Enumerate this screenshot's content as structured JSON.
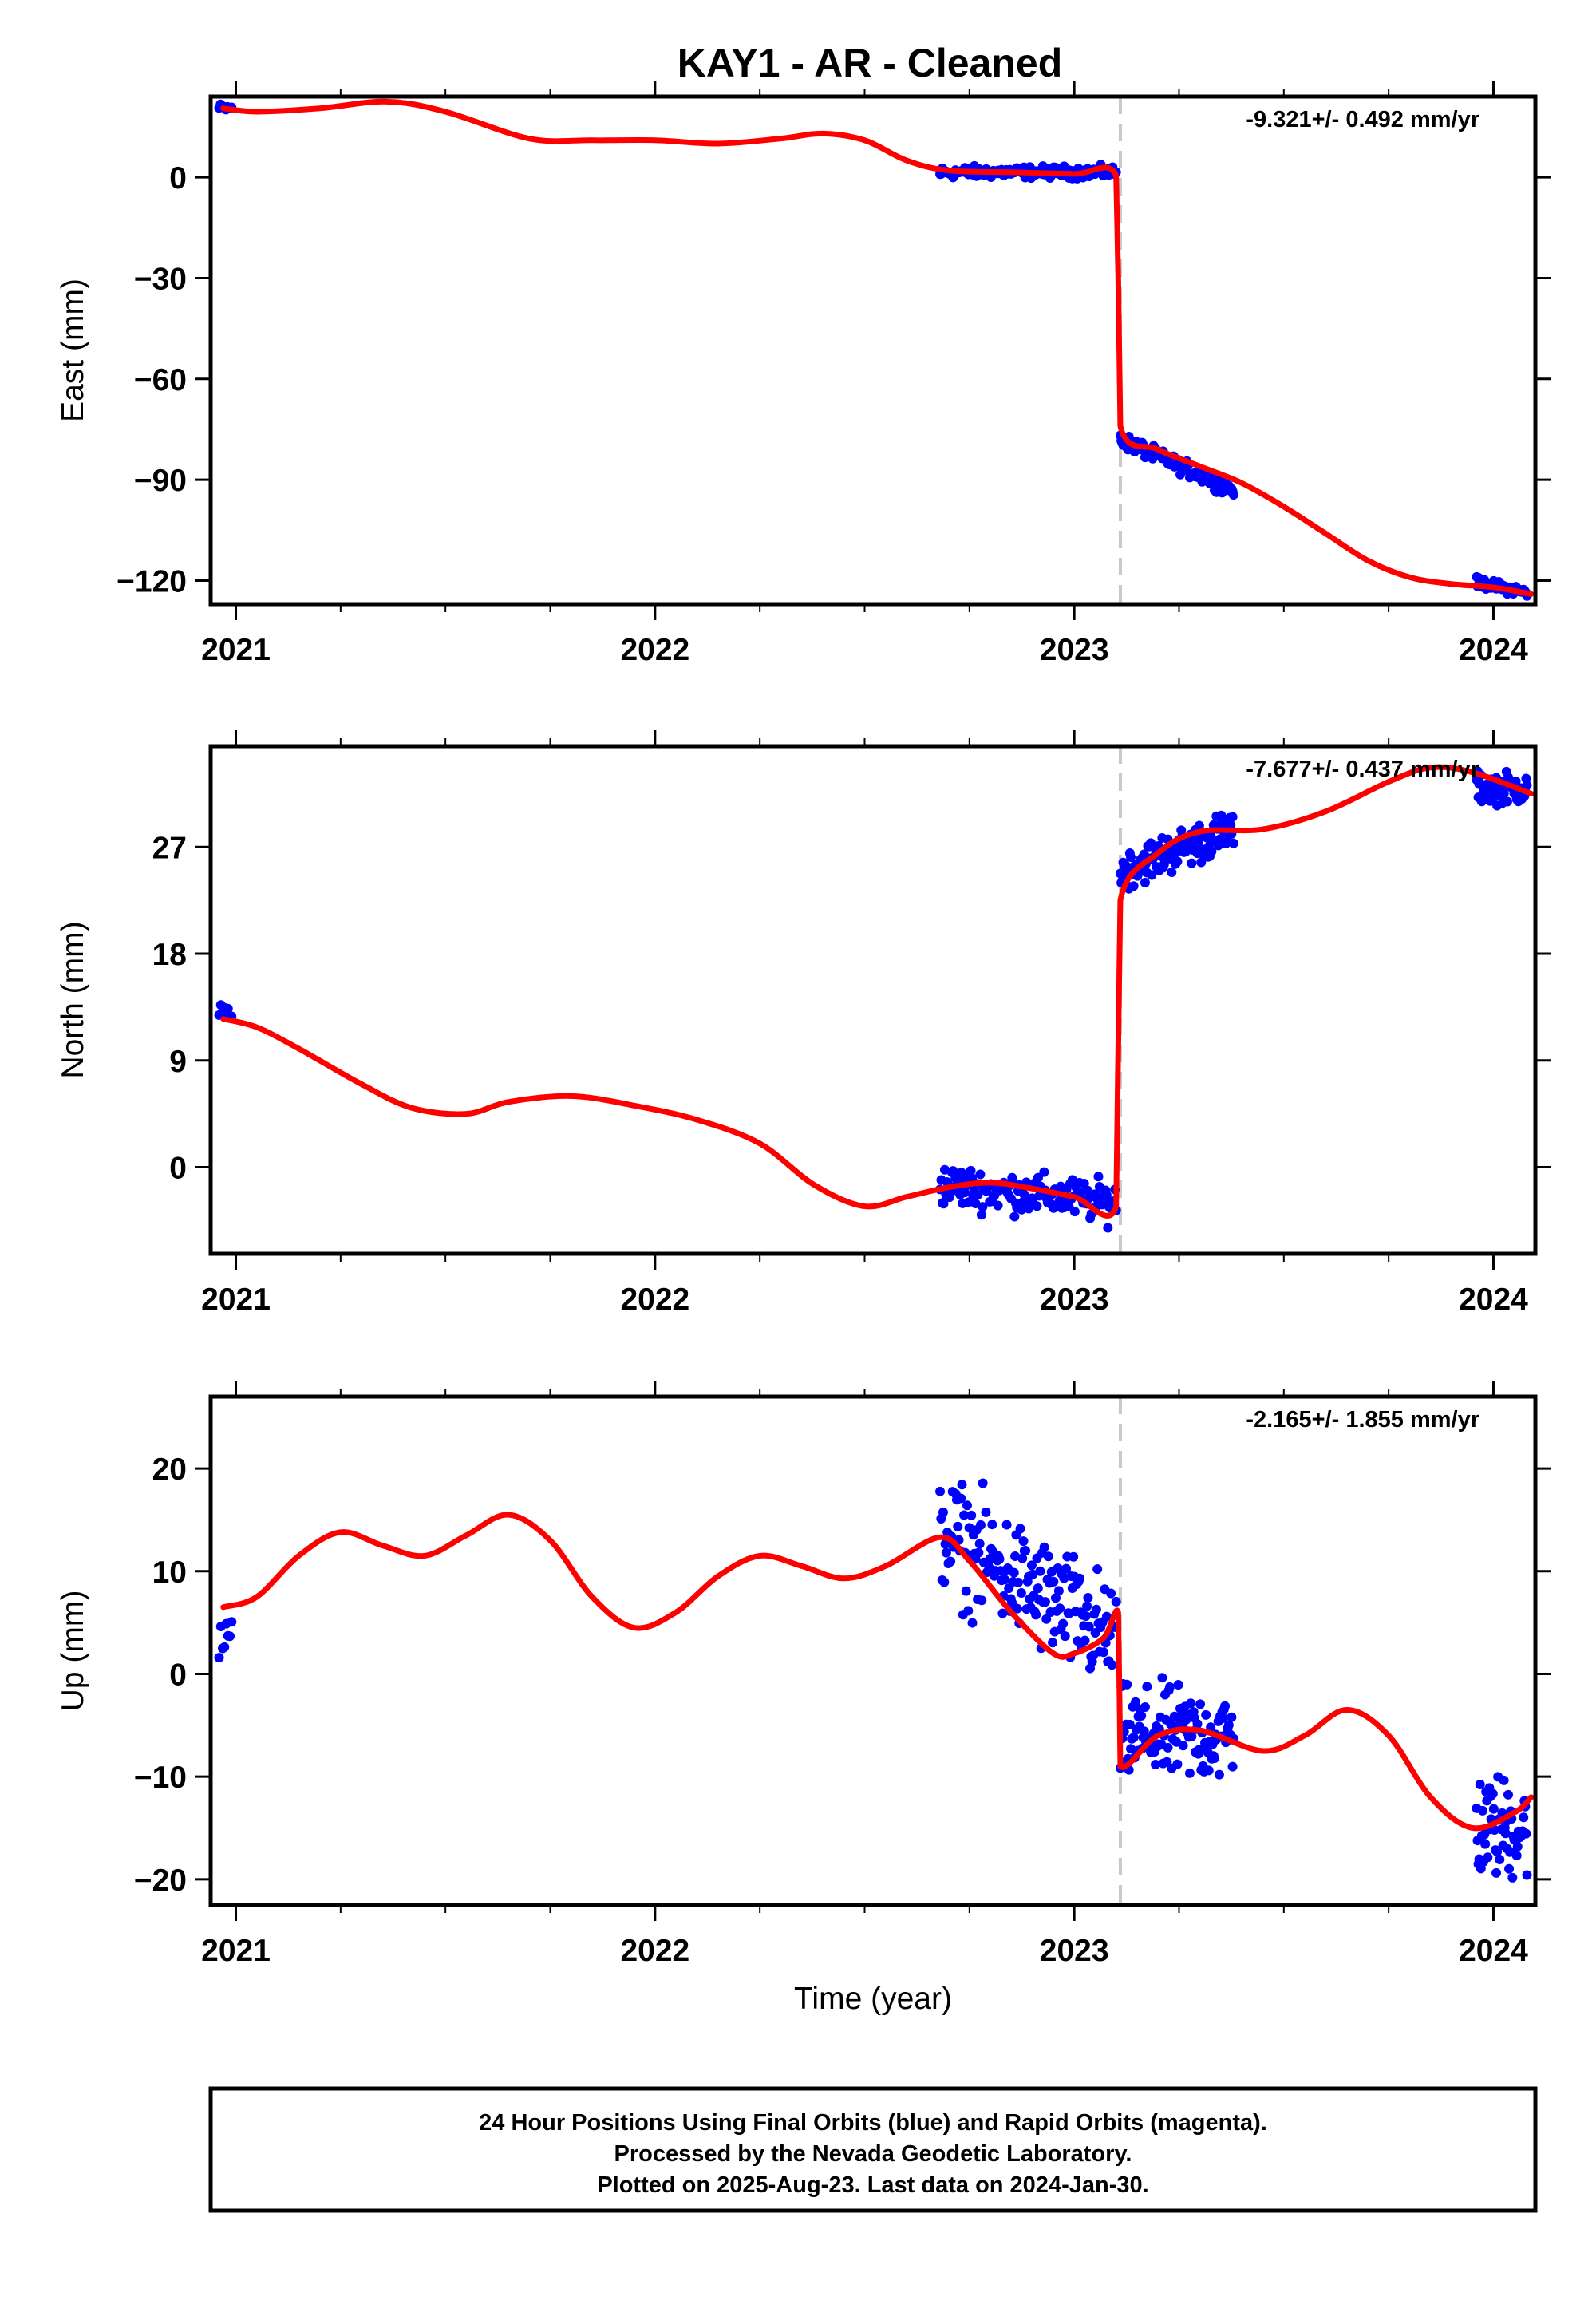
{
  "page": {
    "title": "KAY1  - AR - Cleaned",
    "footer_lines": [
      "24 Hour Positions Using Final Orbits (blue) and Rapid Orbits (magenta).",
      "Processed by the Nevada Geodetic Laboratory.",
      "Plotted on 2025-Aug-23. Last data on 2024-Jan-30."
    ]
  },
  "colors": {
    "data_points": "#0000ff",
    "model_line": "#ff0000",
    "event_line": "#c8c8c8",
    "frame": "#000000"
  },
  "chart_data": [
    {
      "type": "scatter",
      "component": "East",
      "ylabel": "East (mm)",
      "xlabel": "",
      "rate_label": "-9.321+/- 0.492 mm/yr",
      "xlim": [
        2020.94,
        2024.1
      ],
      "ylim": [
        -127,
        24
      ],
      "x_ticks": [
        2021,
        2022,
        2023,
        2024
      ],
      "y_ticks": [
        -120,
        -90,
        -60,
        -30,
        0
      ],
      "event_line_x": 2023.11,
      "model": [
        [
          2020.97,
          20.5
        ],
        [
          2021.05,
          19.5
        ],
        [
          2021.2,
          20.5
        ],
        [
          2021.36,
          22.5
        ],
        [
          2021.5,
          19.5
        ],
        [
          2021.7,
          11.5
        ],
        [
          2021.85,
          11
        ],
        [
          2022.0,
          11
        ],
        [
          2022.15,
          10
        ],
        [
          2022.3,
          11.5
        ],
        [
          2022.4,
          13
        ],
        [
          2022.5,
          11
        ],
        [
          2022.6,
          5
        ],
        [
          2022.7,
          2
        ],
        [
          2022.85,
          1.5
        ],
        [
          2023.0,
          1
        ],
        [
          2023.1,
          0.5
        ],
        [
          2023.105,
          -30
        ],
        [
          2023.11,
          -74
        ],
        [
          2023.2,
          -81
        ],
        [
          2023.3,
          -86
        ],
        [
          2023.4,
          -91
        ],
        [
          2023.5,
          -98
        ],
        [
          2023.6,
          -106
        ],
        [
          2023.7,
          -114
        ],
        [
          2023.8,
          -119
        ],
        [
          2023.9,
          -121
        ],
        [
          2024.0,
          -122
        ],
        [
          2024.09,
          -124
        ]
      ],
      "point_groups": [
        {
          "x_range": [
            2020.96,
            2020.99
          ],
          "count": 10,
          "center": [
            20.5,
            20.5
          ],
          "spread": 1.0
        },
        {
          "x_range": [
            2022.68,
            2023.1
          ],
          "count": 150,
          "center": [
            1.5,
            1.5
          ],
          "spread": 1.2
        },
        {
          "x_range": [
            2023.11,
            2023.38
          ],
          "count": 120,
          "center": [
            -78,
            -93
          ],
          "spread": 1.5
        },
        {
          "x_range": [
            2023.96,
            2024.08
          ],
          "count": 60,
          "center": [
            -120.5,
            -123.5
          ],
          "spread": 1.0
        }
      ]
    },
    {
      "type": "scatter",
      "component": "North",
      "ylabel": "North (mm)",
      "xlabel": "",
      "rate_label": "-7.677+/- 0.437 mm/yr",
      "xlim": [
        2020.94,
        2024.1
      ],
      "ylim": [
        -7.3,
        35.5
      ],
      "x_ticks": [
        2021,
        2022,
        2023,
        2024
      ],
      "y_ticks": [
        0,
        9,
        18,
        27
      ],
      "event_line_x": 2023.11,
      "model": [
        [
          2020.97,
          12.5
        ],
        [
          2021.05,
          11.8
        ],
        [
          2021.15,
          10
        ],
        [
          2021.3,
          7
        ],
        [
          2021.42,
          5
        ],
        [
          2021.55,
          4.5
        ],
        [
          2021.65,
          5.5
        ],
        [
          2021.8,
          6
        ],
        [
          2021.95,
          5.2
        ],
        [
          2022.1,
          4
        ],
        [
          2022.25,
          2
        ],
        [
          2022.38,
          -1.5
        ],
        [
          2022.5,
          -3.3
        ],
        [
          2022.6,
          -2.5
        ],
        [
          2022.7,
          -1.7
        ],
        [
          2022.8,
          -1.3
        ],
        [
          2022.9,
          -1.8
        ],
        [
          2023.0,
          -2.5
        ],
        [
          2023.1,
          -3.3
        ],
        [
          2023.105,
          10
        ],
        [
          2023.11,
          22.5
        ],
        [
          2023.2,
          26.5
        ],
        [
          2023.3,
          28.3
        ],
        [
          2023.45,
          28.5
        ],
        [
          2023.6,
          30
        ],
        [
          2023.75,
          32.5
        ],
        [
          2023.85,
          33.7
        ],
        [
          2023.95,
          33.3
        ],
        [
          2024.09,
          31.5
        ]
      ],
      "point_groups": [
        {
          "x_range": [
            2020.96,
            2020.99
          ],
          "count": 8,
          "center": [
            13,
            13
          ],
          "spread": 0.6
        },
        {
          "x_range": [
            2022.68,
            2023.1
          ],
          "count": 150,
          "center": [
            -1.5,
            -3.0
          ],
          "spread": 1.2
        },
        {
          "x_range": [
            2023.11,
            2023.38
          ],
          "count": 120,
          "center": [
            25,
            28.5
          ],
          "spread": 1.2
        },
        {
          "x_range": [
            2023.96,
            2024.08
          ],
          "count": 60,
          "center": [
            32,
            32
          ],
          "spread": 0.9
        }
      ]
    },
    {
      "type": "scatter",
      "component": "Up",
      "ylabel": "Up (mm)",
      "xlabel": "Time (year)",
      "rate_label": "-2.165+/- 1.855 mm/yr",
      "xlim": [
        2020.94,
        2024.1
      ],
      "ylim": [
        -22.5,
        27
      ],
      "x_ticks": [
        2021,
        2022,
        2023,
        2024
      ],
      "y_ticks": [
        -20,
        -10,
        0,
        10,
        20
      ],
      "event_line_x": 2023.11,
      "model": [
        [
          2020.97,
          6.5
        ],
        [
          2021.05,
          7.5
        ],
        [
          2021.15,
          11.5
        ],
        [
          2021.25,
          13.8
        ],
        [
          2021.35,
          12.5
        ],
        [
          2021.45,
          11.5
        ],
        [
          2021.55,
          13.5
        ],
        [
          2021.65,
          15.5
        ],
        [
          2021.75,
          13
        ],
        [
          2021.85,
          7.5
        ],
        [
          2021.95,
          4.5
        ],
        [
          2022.05,
          6
        ],
        [
          2022.15,
          9.5
        ],
        [
          2022.25,
          11.5
        ],
        [
          2022.35,
          10.5
        ],
        [
          2022.45,
          9.3
        ],
        [
          2022.55,
          10.5
        ],
        [
          2022.68,
          13.3
        ],
        [
          2022.75,
          11
        ],
        [
          2022.85,
          6
        ],
        [
          2022.95,
          2
        ],
        [
          2023.0,
          2
        ],
        [
          2023.07,
          3.5
        ],
        [
          2023.105,
          6
        ],
        [
          2023.108,
          -2
        ],
        [
          2023.11,
          -9
        ],
        [
          2023.2,
          -6
        ],
        [
          2023.3,
          -5.5
        ],
        [
          2023.45,
          -7.5
        ],
        [
          2023.55,
          -6
        ],
        [
          2023.65,
          -3.5
        ],
        [
          2023.75,
          -6
        ],
        [
          2023.85,
          -12
        ],
        [
          2023.95,
          -15
        ],
        [
          2024.05,
          -13.5
        ],
        [
          2024.09,
          -12
        ]
      ],
      "point_groups": [
        {
          "x_range": [
            2020.96,
            2020.99
          ],
          "count": 8,
          "center": [
            3,
            3
          ],
          "spread": 1.8
        },
        {
          "x_range": [
            2022.68,
            2023.1
          ],
          "count": 170,
          "center": [
            14,
            3
          ],
          "spread": 4.0
        },
        {
          "x_range": [
            2023.11,
            2023.38
          ],
          "count": 120,
          "center": [
            -6,
            -6
          ],
          "spread": 3.2
        },
        {
          "x_range": [
            2023.96,
            2024.08
          ],
          "count": 60,
          "center": [
            -15,
            -15
          ],
          "spread": 3.5
        }
      ]
    }
  ]
}
